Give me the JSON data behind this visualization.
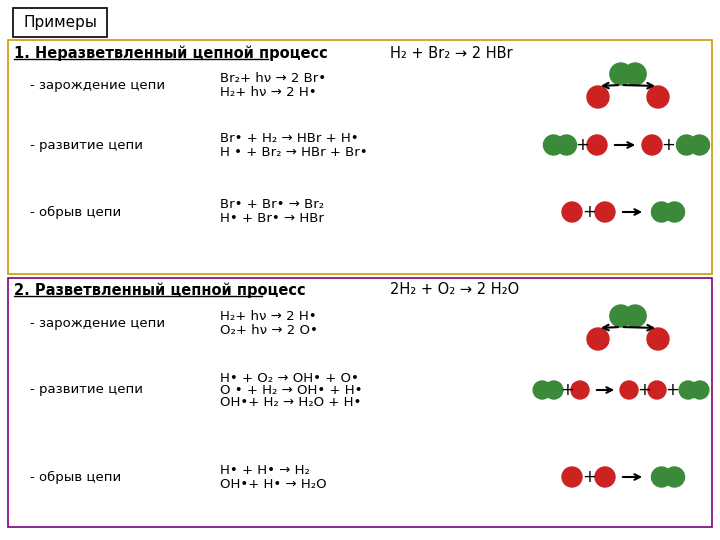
{
  "bg_color": "#ffffff",
  "title_box": "Примеры",
  "section1_header": "1. Неразветвленный цепной процесс",
  "section1_formula": "H₂ + Br₂ → 2 HBr",
  "section2_header": "2. Разветвленный цепной процесс",
  "section2_formula": "2H₂ + O₂ → 2 H₂O",
  "s1_r1_label": "- зарождение цепи",
  "s1_r1_eq1": "Br₂+ hν → 2 Br•",
  "s1_r1_eq2": "H₂+ hν → 2 H•",
  "s1_r2_label": "- развитие цепи",
  "s1_r2_eq1": "Br• + H₂ → HBr + H•",
  "s1_r2_eq2": "H • + Br₂ → HBr + Br•",
  "s1_r3_label": "- обрыв цепи",
  "s1_r3_eq1": "Br• + Br• → Br₂",
  "s1_r3_eq2": "H• + Br• → HBr",
  "s2_r1_label": "- зарождение цепи",
  "s2_r1_eq1": "H₂+ hν → 2 H•",
  "s2_r1_eq2": "O₂+ hν → 2 O•",
  "s2_r2_label": "- развитие цепи",
  "s2_r2_eq1": "H• + O₂ → OH• + O•",
  "s2_r2_eq2": "O • + H₂ → OH• + H•",
  "s2_r2_eq3": "OH•+ H₂ → H₂O + H•",
  "s2_r3_label": "- обрыв цепи",
  "s2_r3_eq1": "H• + H• → H₂",
  "s2_r3_eq2": "OH•+ H• → H₂O",
  "green": "#3a8a3a",
  "red": "#cc2222",
  "text_color": "#000000",
  "section1_box_color": "#c8a000",
  "section2_box_color": "#800080"
}
